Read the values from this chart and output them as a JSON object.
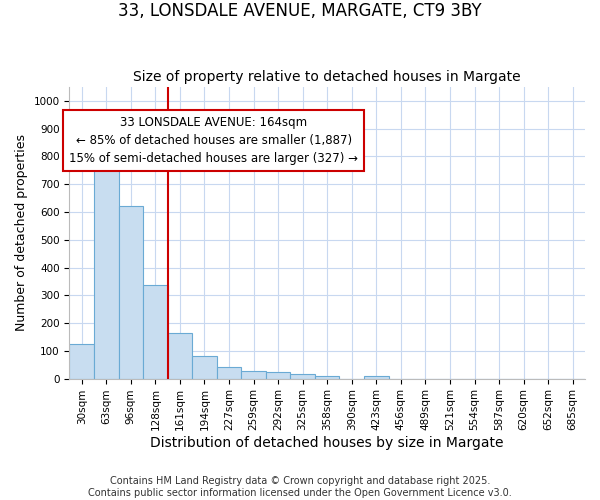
{
  "title1": "33, LONSDALE AVENUE, MARGATE, CT9 3BY",
  "title2": "Size of property relative to detached houses in Margate",
  "xlabel": "Distribution of detached houses by size in Margate",
  "ylabel": "Number of detached properties",
  "bar_labels": [
    "30sqm",
    "63sqm",
    "96sqm",
    "128sqm",
    "161sqm",
    "194sqm",
    "227sqm",
    "259sqm",
    "292sqm",
    "325sqm",
    "358sqm",
    "390sqm",
    "423sqm",
    "456sqm",
    "489sqm",
    "521sqm",
    "554sqm",
    "587sqm",
    "620sqm",
    "652sqm",
    "685sqm"
  ],
  "bar_values": [
    125,
    805,
    620,
    338,
    165,
    80,
    40,
    28,
    25,
    15,
    10,
    0,
    8,
    0,
    0,
    0,
    0,
    0,
    0,
    0,
    0
  ],
  "bar_color": "#c8ddf0",
  "bar_edgecolor": "#6aaad4",
  "vline_index": 4,
  "vline_color": "#cc0000",
  "annotation_line1": "33 LONSDALE AVENUE: 164sqm",
  "annotation_line2": "← 85% of detached houses are smaller (1,887)",
  "annotation_line3": "15% of semi-detached houses are larger (327) →",
  "annotation_box_edgecolor": "#cc0000",
  "annotation_box_facecolor": "#ffffff",
  "ylim": [
    0,
    1050
  ],
  "yticks": [
    0,
    100,
    200,
    300,
    400,
    500,
    600,
    700,
    800,
    900,
    1000
  ],
  "fig_bg": "#ffffff",
  "ax_bg": "#ffffff",
  "grid_color": "#c8d8f0",
  "footer_line1": "Contains HM Land Registry data © Crown copyright and database right 2025.",
  "footer_line2": "Contains public sector information licensed under the Open Government Licence v3.0.",
  "title1_fontsize": 12,
  "title2_fontsize": 10,
  "annot_fontsize": 8.5,
  "tick_fontsize": 7.5,
  "ylabel_fontsize": 9,
  "xlabel_fontsize": 10,
  "footer_fontsize": 7
}
